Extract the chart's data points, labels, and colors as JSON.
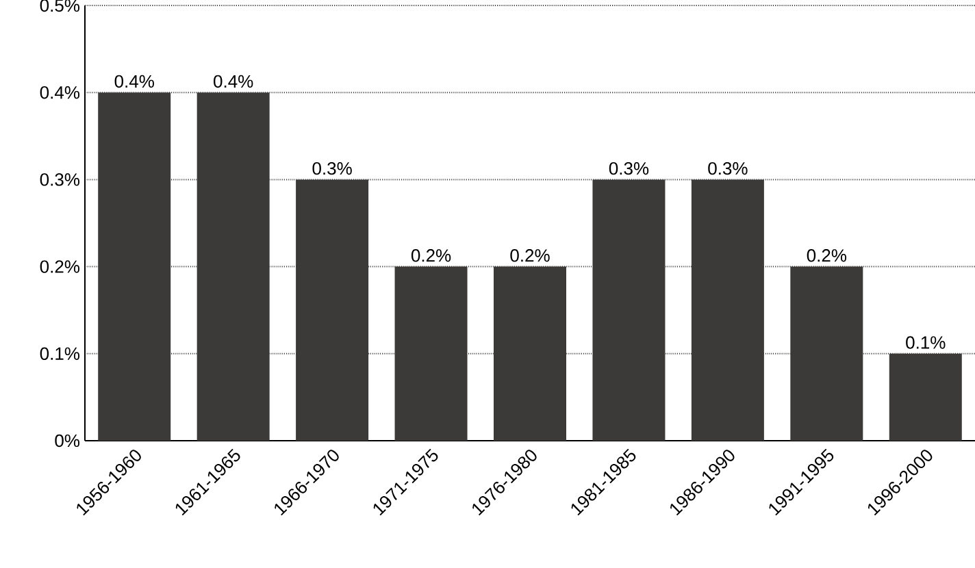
{
  "chart_data": {
    "type": "bar",
    "categories": [
      "1956-1960",
      "1961-1965",
      "1966-1970",
      "1971-1975",
      "1976-1980",
      "1981-1985",
      "1986-1990",
      "1991-1995",
      "1996-2000"
    ],
    "values": [
      0.4,
      0.4,
      0.3,
      0.2,
      0.2,
      0.3,
      0.3,
      0.2,
      0.1
    ],
    "value_labels": [
      "0.4%",
      "0.4%",
      "0.3%",
      "0.2%",
      "0.2%",
      "0.3%",
      "0.3%",
      "0.2%",
      "0.1%"
    ],
    "color": "#3c3a38",
    "ylim": [
      0,
      0.5
    ],
    "yticks": [
      {
        "value": 0,
        "label": "0%"
      },
      {
        "value": 0.1,
        "label": "0.1%"
      },
      {
        "value": 0.2,
        "label": "0.2%"
      },
      {
        "value": 0.3,
        "label": "0.3%"
      },
      {
        "value": 0.4,
        "label": "0.4%"
      },
      {
        "value": 0.5,
        "label": "0.5%"
      }
    ],
    "grid": "y"
  }
}
